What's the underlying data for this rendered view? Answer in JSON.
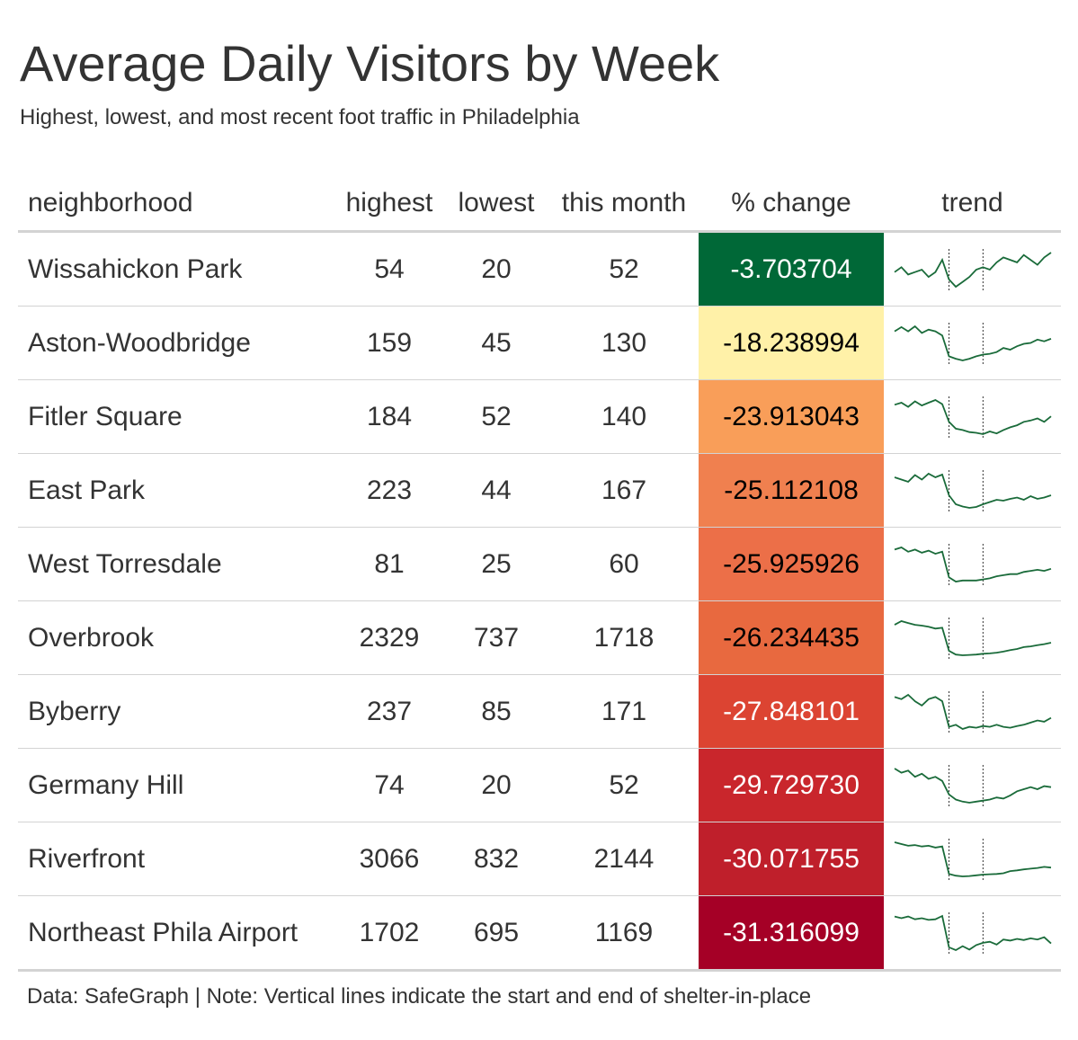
{
  "title": "Average Daily Visitors by Week",
  "subtitle": "Highest, lowest, and most recent foot traffic in Philadelphia",
  "footnote": "Data: SafeGraph | Note: Vertical lines indicate the start and end of shelter-in-place",
  "colors": {
    "trend_line": "#1a6b3a",
    "divider": "#d3d3d3",
    "text": "#333333"
  },
  "chart_data": {
    "type": "table",
    "columns": [
      "neighborhood",
      "highest",
      "lowest",
      "this month",
      "% change",
      "trend"
    ],
    "shelter_in_place_markers": [
      8,
      13
    ],
    "rows": [
      {
        "neighborhood": "Wissahickon Park",
        "highest": "54",
        "lowest": "20",
        "this_month": "52",
        "pct_change": "-3.703704",
        "pct_color": "#006837",
        "pct_text_color": "#ffffff",
        "trend": [
          40,
          42,
          39,
          40,
          41,
          38,
          40,
          45,
          37,
          34,
          36,
          38,
          41,
          42,
          41,
          44,
          46,
          45,
          44,
          47,
          45,
          43,
          46,
          48
        ]
      },
      {
        "neighborhood": "Aston-Woodbridge",
        "highest": "159",
        "lowest": "45",
        "this_month": "130",
        "pct_change": "-18.238994",
        "pct_color": "#fff1a8",
        "pct_text_color": "#000000",
        "trend": [
          150,
          155,
          150,
          156,
          148,
          152,
          150,
          145,
          120,
          117,
          115,
          117,
          120,
          122,
          123,
          125,
          130,
          128,
          132,
          135,
          136,
          140,
          138,
          141
        ]
      },
      {
        "neighborhood": "Fitler Square",
        "highest": "184",
        "lowest": "52",
        "this_month": "140",
        "pct_change": "-23.913043",
        "pct_color": "#f99e59",
        "pct_text_color": "#000000",
        "trend": [
          175,
          178,
          172,
          180,
          174,
          178,
          182,
          176,
          150,
          140,
          138,
          135,
          134,
          132,
          136,
          133,
          138,
          142,
          145,
          150,
          152,
          155,
          150,
          158
        ]
      },
      {
        "neighborhood": "East Park",
        "highest": "223",
        "lowest": "44",
        "this_month": "167",
        "pct_change": "-25.112108",
        "pct_color": "#f0804f",
        "pct_text_color": "#000000",
        "trend": [
          210,
          205,
          200,
          215,
          205,
          218,
          210,
          216,
          170,
          150,
          145,
          142,
          144,
          150,
          155,
          160,
          158,
          162,
          165,
          160,
          168,
          162,
          165,
          170
        ]
      },
      {
        "neighborhood": "West Torresdale",
        "highest": "81",
        "lowest": "25",
        "this_month": "60",
        "pct_change": "-25.925926",
        "pct_color": "#ec6f48",
        "pct_text_color": "#000000",
        "trend": [
          78,
          80,
          76,
          78,
          75,
          77,
          74,
          76,
          52,
          48,
          49,
          49,
          49,
          50,
          51,
          53,
          54,
          55,
          55,
          57,
          58,
          59,
          58,
          60
        ]
      },
      {
        "neighborhood": "Overbrook",
        "highest": "2329",
        "lowest": "737",
        "this_month": "1718",
        "pct_change": "-26.234435",
        "pct_color": "#e8693f",
        "pct_text_color": "#000000",
        "trend": [
          2200,
          2300,
          2250,
          2200,
          2180,
          2150,
          2100,
          2120,
          1500,
          1400,
          1380,
          1390,
          1400,
          1420,
          1430,
          1450,
          1480,
          1520,
          1550,
          1600,
          1620,
          1650,
          1680,
          1718
        ]
      },
      {
        "neighborhood": "Byberry",
        "highest": "237",
        "lowest": "85",
        "this_month": "171",
        "pct_change": "-27.848101",
        "pct_color": "#dc4432",
        "pct_text_color": "#ffffff",
        "trend": [
          220,
          215,
          225,
          210,
          200,
          215,
          220,
          210,
          150,
          155,
          145,
          150,
          148,
          152,
          150,
          155,
          150,
          148,
          152,
          155,
          160,
          165,
          162,
          171
        ]
      },
      {
        "neighborhood": "Germany Hill",
        "highest": "74",
        "lowest": "20",
        "this_month": "52",
        "pct_change": "-29.729730",
        "pct_color": "#c9262c",
        "pct_text_color": "#ffffff",
        "trend": [
          70,
          66,
          68,
          62,
          65,
          60,
          62,
          58,
          45,
          40,
          38,
          37,
          38,
          39,
          40,
          42,
          41,
          44,
          48,
          50,
          52,
          50,
          53,
          52
        ]
      },
      {
        "neighborhood": "Riverfront",
        "highest": "3066",
        "lowest": "832",
        "this_month": "2144",
        "pct_change": "-30.071755",
        "pct_color": "#bf1f2b",
        "pct_text_color": "#ffffff",
        "trend": [
          3000,
          2950,
          2900,
          2920,
          2880,
          2900,
          2850,
          2880,
          2100,
          2050,
          2030,
          2040,
          2060,
          2080,
          2090,
          2100,
          2120,
          2180,
          2200,
          2230,
          2250,
          2270,
          2300,
          2280
        ]
      },
      {
        "neighborhood": "Northeast Phila Airport",
        "highest": "1702",
        "lowest": "695",
        "this_month": "1169",
        "pct_change": "-31.316099",
        "pct_color": "#a50026",
        "pct_text_color": "#ffffff",
        "trend": [
          1650,
          1620,
          1650,
          1600,
          1620,
          1590,
          1600,
          1660,
          1100,
          1050,
          1120,
          1060,
          1140,
          1180,
          1200,
          1150,
          1240,
          1220,
          1250,
          1230,
          1260,
          1240,
          1280,
          1169
        ]
      }
    ]
  }
}
